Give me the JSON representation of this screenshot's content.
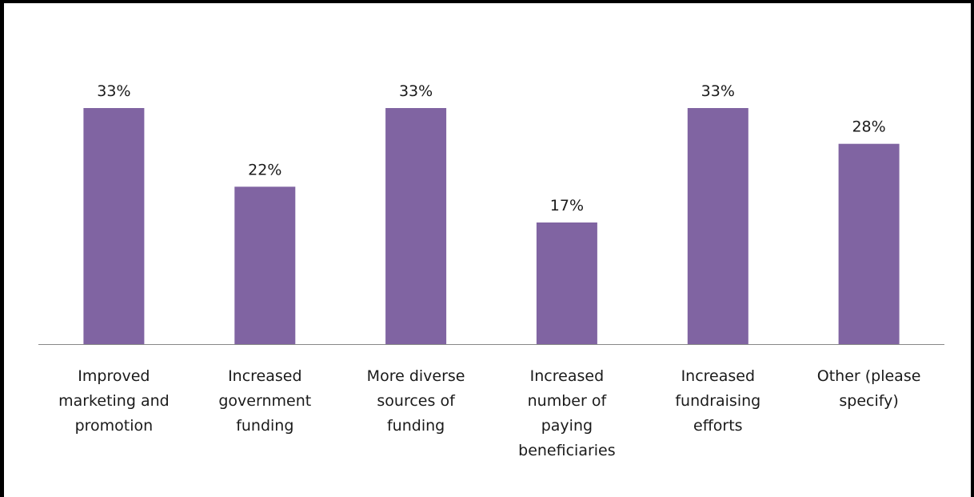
{
  "chart_data": {
    "type": "bar",
    "categories": [
      [
        "Improved",
        "marketing and",
        "promotion"
      ],
      [
        "Increased",
        "government",
        "funding"
      ],
      [
        "More diverse",
        "sources of",
        "funding"
      ],
      [
        "Increased",
        "number of",
        "paying",
        "beneficiaries"
      ],
      [
        "Increased",
        "fundraising",
        "efforts"
      ],
      [
        "Other (please",
        "specify)"
      ]
    ],
    "values": [
      33,
      22,
      33,
      17,
      33,
      28
    ],
    "value_labels": [
      "33%",
      "22%",
      "33%",
      "17%",
      "33%",
      "28%"
    ],
    "title": "",
    "xlabel": "",
    "ylabel": "",
    "ylim": [
      0,
      33
    ],
    "y_axis_visible": false,
    "grid": false,
    "legend": "none",
    "bar_color": "#8064A2",
    "axis_color": "#888888"
  }
}
